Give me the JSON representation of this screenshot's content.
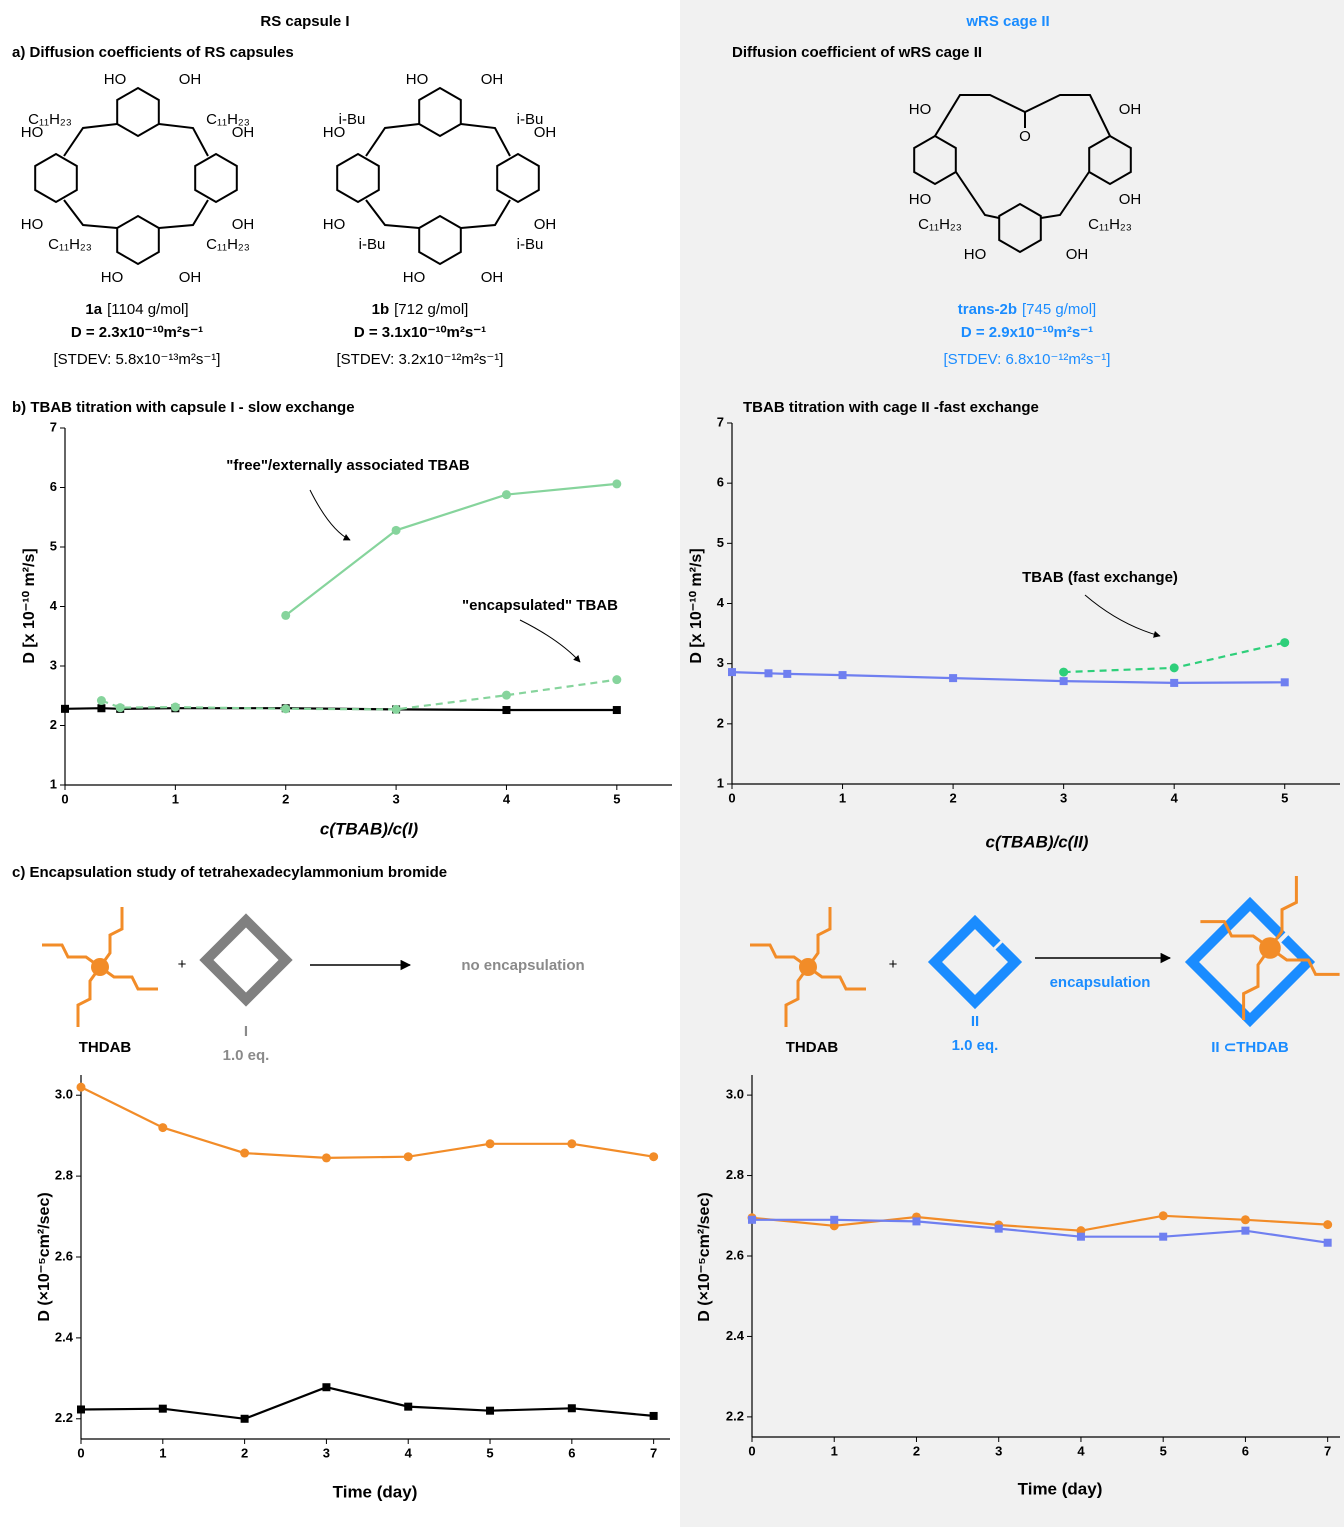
{
  "headers": {
    "left": "RS capsule I",
    "right": "wRS cage II"
  },
  "panel_a": {
    "title_left": "a) Diffusion coefficients of RS capsules",
    "title_right": "Diffusion coefficient of wRS cage II",
    "compounds": [
      {
        "labels": [
          "HO",
          "OH",
          "C₁₁H₂₃",
          "C₁₁H₂₃",
          "HO",
          "OH",
          "HO",
          "OH",
          "C₁₁H₂₃",
          "C₁₁H₂₃",
          "HO",
          "OH"
        ],
        "name": "1a",
        "mw": "[1104 g/mol]",
        "d": "D = 2.3x10⁻¹⁰m²s⁻¹",
        "stdev": "[STDEV: 5.8x10⁻¹³m²s⁻¹]"
      },
      {
        "labels": [
          "HO",
          "OH",
          "i-Bu",
          "i-Bu",
          "HO",
          "OH",
          "HO",
          "OH",
          "i-Bu",
          "i-Bu",
          "HO",
          "OH"
        ],
        "name": "1b",
        "mw": "[712 g/mol]",
        "d": "D = 3.1x10⁻¹⁰m²s⁻¹",
        "stdev": "[STDEV: 3.2x10⁻¹²m²s⁻¹]"
      },
      {
        "labels": [
          "HO",
          "O",
          "OH",
          "HO",
          "OH",
          "C₁₁H₂₃",
          "C₁₁H₂₃",
          "HO",
          "OH"
        ],
        "name": "trans-2b",
        "mw": "[745 g/mol]",
        "d": "D = 2.9x10⁻¹⁰m²s⁻¹",
        "stdev": "[STDEV: 6.8x10⁻¹²m²s⁻¹]"
      }
    ]
  },
  "panel_c": {
    "title": "c) Encapsulation study of tetrahexadecylammonium bromide",
    "left": {
      "guest": "THDAB",
      "plus": "+",
      "host": "I",
      "eq": "1.0 eq.",
      "result": "no encapsulation"
    },
    "right": {
      "guest": "THDAB",
      "plus": "+",
      "host": "II",
      "eq": "1.0 eq.",
      "arrow_label": "encapsulation",
      "product": "II ⊂THDAB"
    }
  },
  "chart_data": [
    {
      "type": "line",
      "title": "b) TBAB titration with capsule I - slow exchange",
      "x_label": "c(TBAB)/c(I)",
      "y_label": "D [x 10⁻¹⁰ m²/s]",
      "xlim": [
        0,
        5.5
      ],
      "ylim": [
        1,
        7
      ],
      "xticks": [
        0,
        1,
        2,
        3,
        4,
        5
      ],
      "yticks": [
        1,
        2,
        3,
        4,
        5,
        6,
        7
      ],
      "series": [
        {
          "color": "#000000",
          "marker": "square",
          "x": [
            0,
            0.33,
            0.5,
            1,
            2,
            3,
            4,
            5
          ],
          "values": [
            2.28,
            2.29,
            2.28,
            2.29,
            2.29,
            2.27,
            2.26,
            2.26
          ]
        },
        {
          "color": "#86d49c",
          "marker": "circle",
          "x": [
            2,
            3,
            4,
            5
          ],
          "values": [
            3.85,
            5.28,
            5.88,
            6.06
          ]
        },
        {
          "color": "#86d49c",
          "marker": "circle",
          "dashed": true,
          "x": [
            0.33,
            0.5,
            1,
            2,
            3,
            4,
            5
          ],
          "values": [
            2.42,
            2.3,
            2.31,
            2.28,
            2.27,
            2.51,
            2.77
          ]
        }
      ],
      "annotations": [
        "\"free\"/externally associated TBAB",
        "\"encapsulated\" TBAB"
      ]
    },
    {
      "type": "line",
      "title": "TBAB titration with cage II -fast exchange",
      "x_label": "c(TBAB)/c(II)",
      "y_label": "D [x 10⁻¹⁰ m²/s]",
      "xlim": [
        0,
        5.5
      ],
      "ylim": [
        1,
        7
      ],
      "xticks": [
        0,
        1,
        2,
        3,
        4,
        5
      ],
      "yticks": [
        1,
        2,
        3,
        4,
        5,
        6,
        7
      ],
      "series": [
        {
          "color": "#6f7ff0",
          "marker": "square",
          "x": [
            0,
            0.33,
            0.5,
            1,
            2,
            3,
            4,
            5
          ],
          "values": [
            2.86,
            2.84,
            2.83,
            2.81,
            2.76,
            2.71,
            2.68,
            2.69
          ]
        },
        {
          "color": "#2ecf7a",
          "marker": "circle",
          "dashed": true,
          "x": [
            3,
            4,
            5
          ],
          "values": [
            2.86,
            2.93,
            3.35
          ]
        }
      ],
      "annotations": [
        "TBAB (fast exchange)"
      ]
    },
    {
      "type": "line",
      "x_label": "Time (day)",
      "y_label": "D (×10⁻⁵cm²/sec)",
      "x": [
        0,
        1,
        2,
        3,
        4,
        5,
        6,
        7
      ],
      "xlim": [
        0,
        7.2
      ],
      "ylim": [
        2.15,
        3.05
      ],
      "xticks": [
        0,
        1,
        2,
        3,
        4,
        5,
        6,
        7
      ],
      "yticks": [
        2.2,
        2.4,
        2.6,
        2.8,
        {
          "value": 3,
          "label": "3.0"
        }
      ],
      "series": [
        {
          "color": "#f28c28",
          "marker": "circle",
          "values": [
            3.02,
            2.92,
            2.857,
            2.845,
            2.848,
            2.88,
            2.88,
            2.848
          ]
        },
        {
          "color": "#000000",
          "marker": "square",
          "values": [
            2.223,
            2.225,
            2.2,
            2.278,
            2.23,
            2.22,
            2.226,
            2.207
          ]
        }
      ]
    },
    {
      "type": "line",
      "x_label": "Time (day)",
      "y_label": "D (×10⁻⁵cm²/sec)",
      "x": [
        0,
        1,
        2,
        3,
        4,
        5,
        6,
        7
      ],
      "xlim": [
        0,
        7.15
      ],
      "ylim": [
        2.15,
        3.05
      ],
      "xticks": [
        0,
        1,
        2,
        3,
        4,
        5,
        6,
        7
      ],
      "yticks": [
        2.2,
        2.4,
        2.6,
        2.8,
        {
          "value": 3,
          "label": "3.0"
        }
      ],
      "series": [
        {
          "color": "#f28c28",
          "marker": "circle",
          "values": [
            2.695,
            2.675,
            2.697,
            2.677,
            2.663,
            2.7,
            2.69,
            2.678
          ]
        },
        {
          "color": "#6f7ff0",
          "marker": "square",
          "values": [
            2.69,
            2.69,
            2.686,
            2.668,
            2.648,
            2.648,
            2.663,
            2.633
          ]
        }
      ]
    }
  ]
}
